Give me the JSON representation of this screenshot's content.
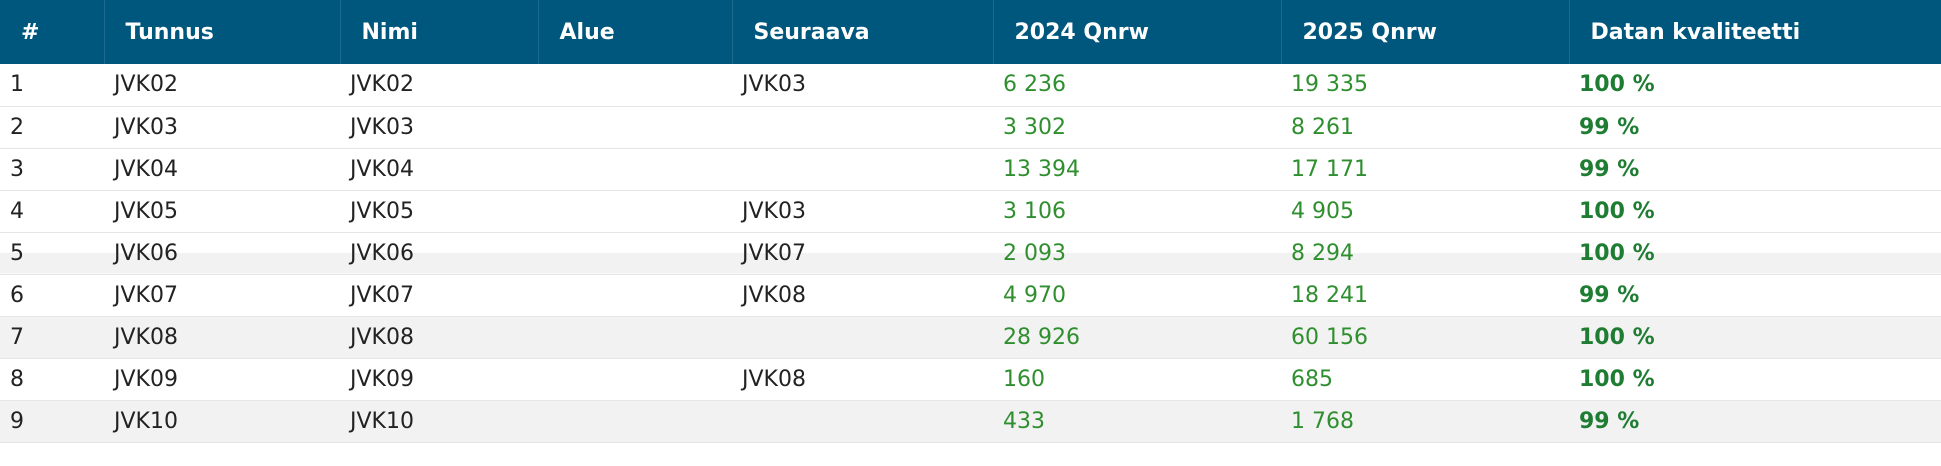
{
  "table": {
    "columns": [
      "#",
      "Tunnus",
      "Nimi",
      "Alue",
      "Seuraava",
      "2024 Qnrw",
      "2025 Qnrw",
      "Datan kvaliteetti"
    ],
    "rows": [
      [
        "1",
        "JVK02",
        "JVK02",
        null,
        "JVK03",
        "6 236",
        "19 335",
        "100 %"
      ],
      [
        "2",
        "JVK03",
        "JVK03",
        null,
        null,
        "3 302",
        "8 261",
        "99 %"
      ],
      [
        "3",
        "JVK04",
        "JVK04",
        null,
        null,
        "13 394",
        "17 171",
        "99 %"
      ],
      [
        "4",
        "JVK05",
        "JVK05",
        null,
        "JVK03",
        "3 106",
        "4 905",
        "100 %"
      ],
      [
        "5",
        "JVK06",
        "JVK06",
        null,
        "JVK07",
        "2 093",
        "8 294",
        "100 %"
      ],
      [
        "6",
        "JVK07",
        "JVK07",
        null,
        "JVK08",
        "4 970",
        "18 241",
        "99 %"
      ],
      [
        "7",
        "JVK08",
        "JVK08",
        null,
        null,
        "28 926",
        "60 156",
        "100 %"
      ],
      [
        "8",
        "JVK09",
        "JVK09",
        null,
        "JVK08",
        "160",
        "685",
        "100 %"
      ],
      [
        "9",
        "JVK10",
        "JVK10",
        null,
        null,
        "433",
        "1 768",
        "99 %"
      ]
    ]
  }
}
